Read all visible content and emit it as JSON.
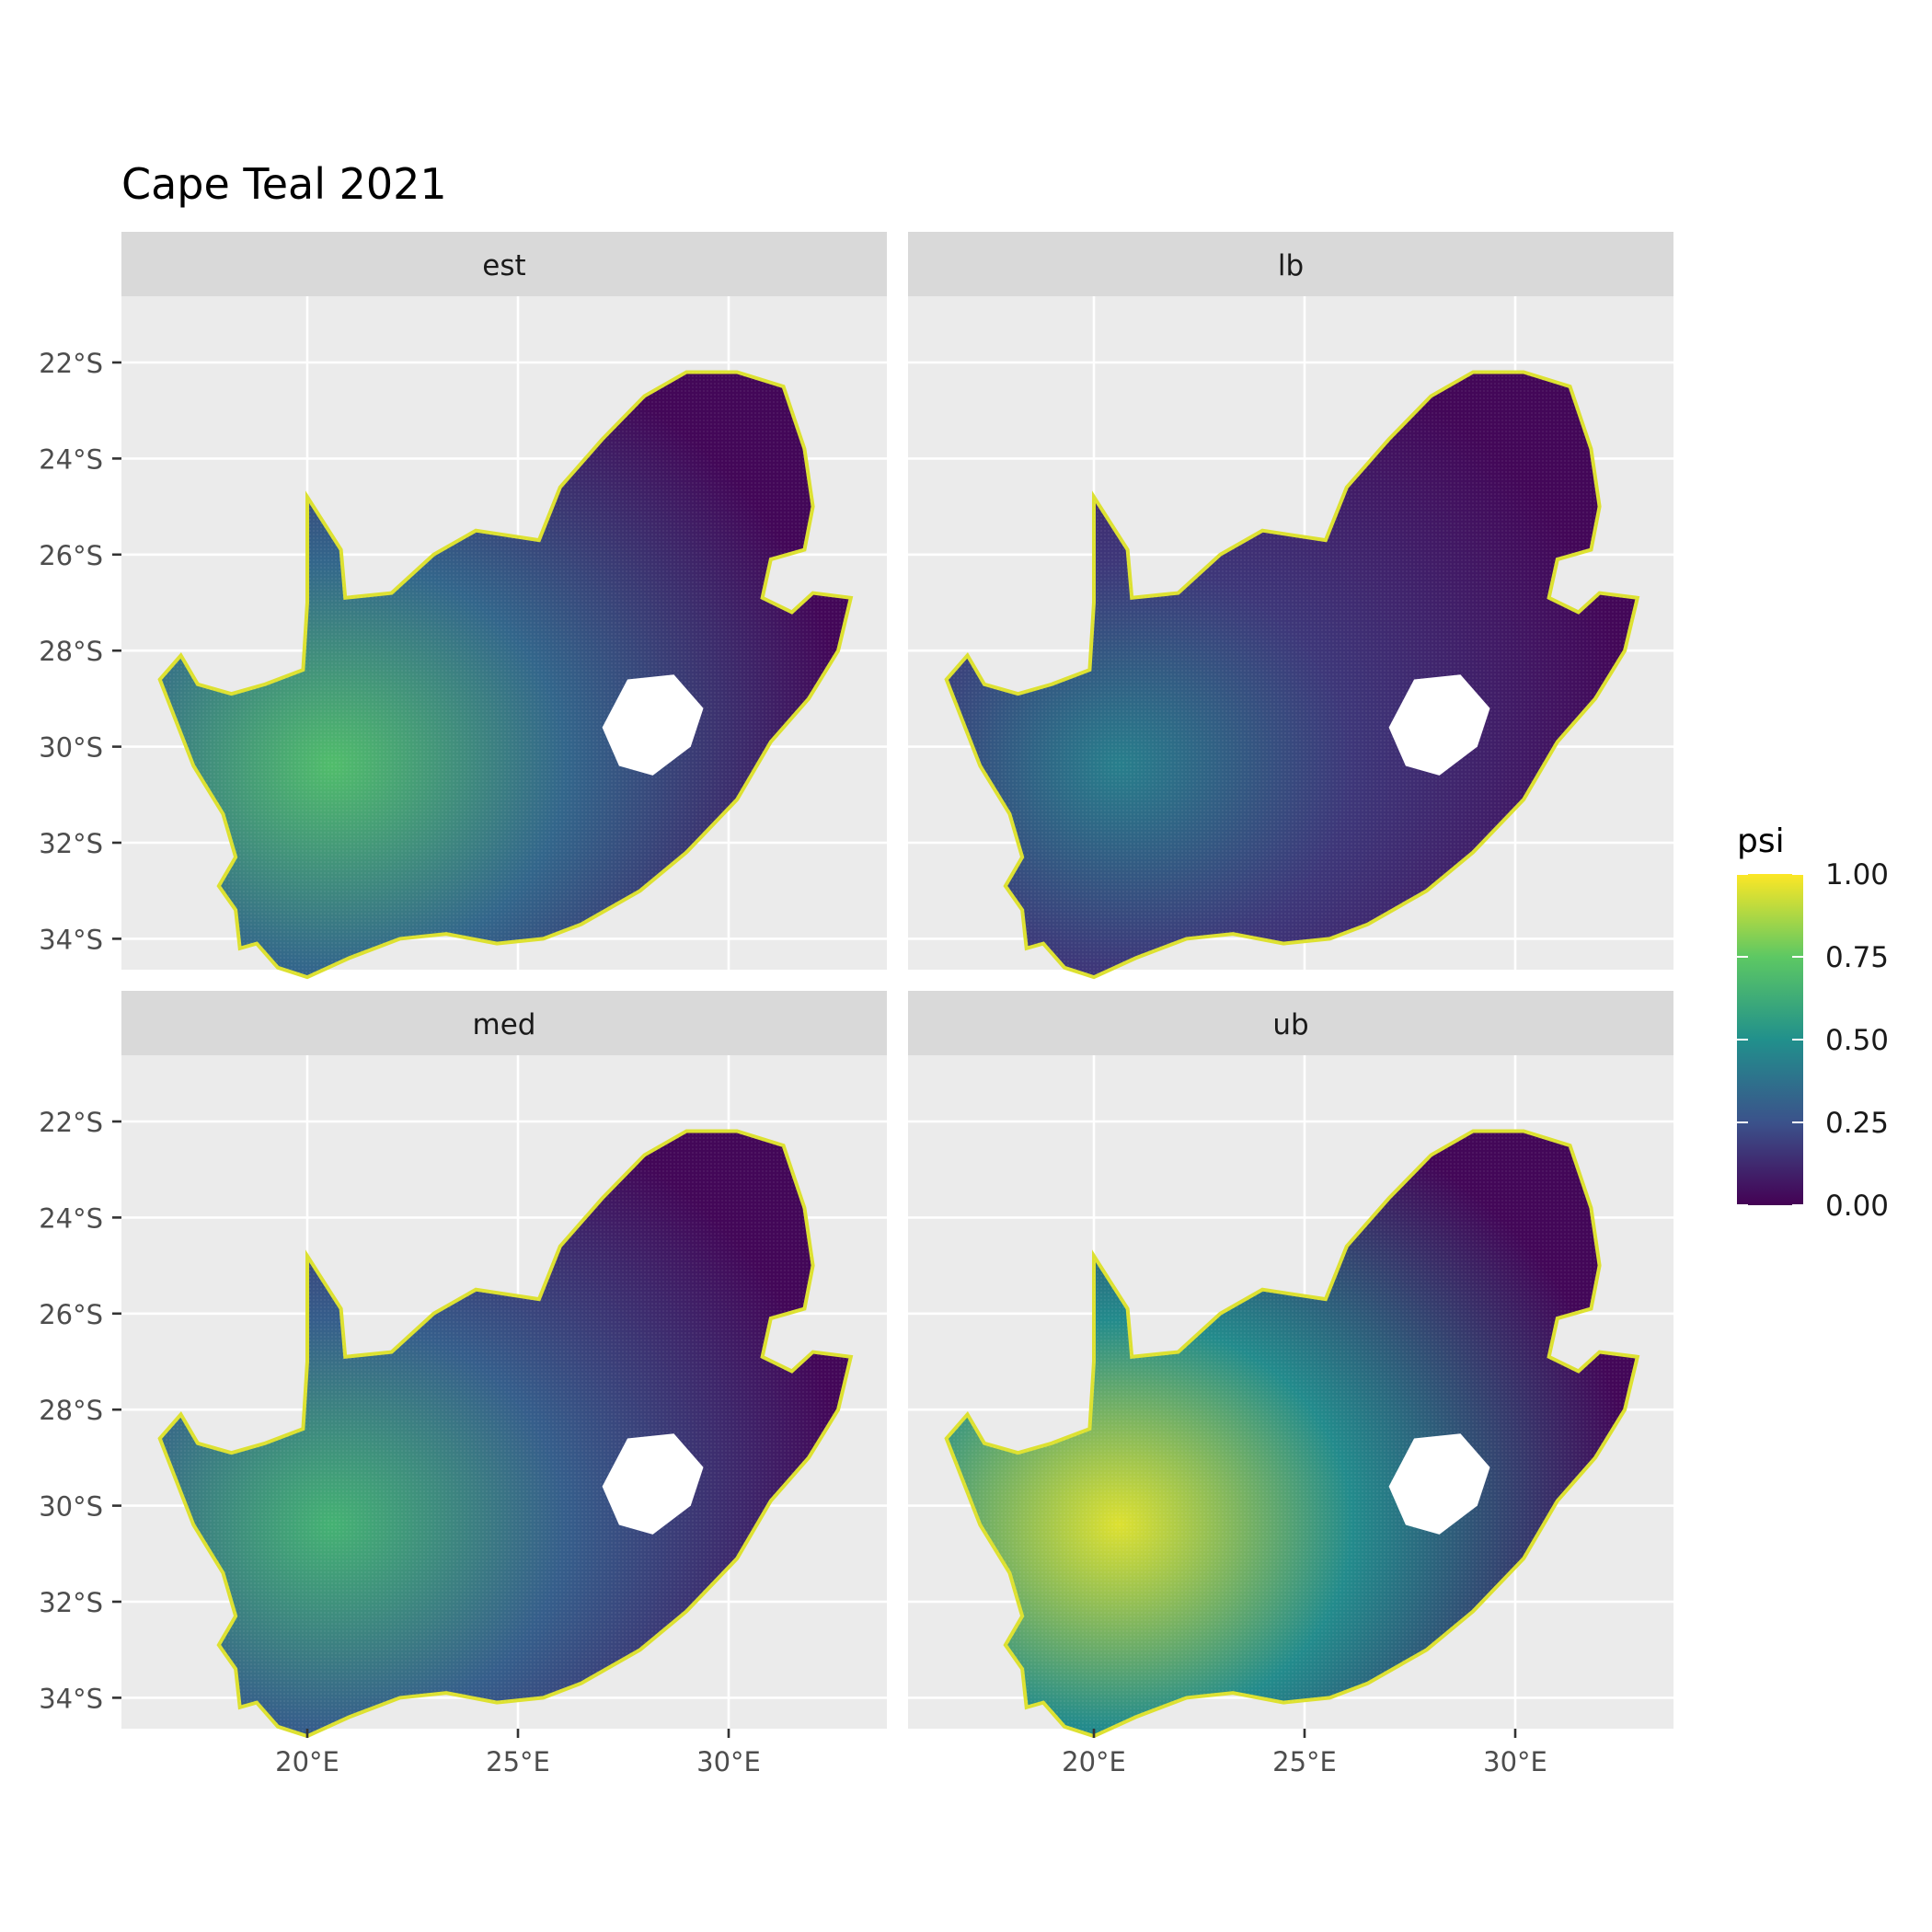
{
  "title": "Cape Teal 2021",
  "panels": [
    {
      "label": "est",
      "level": 0.55
    },
    {
      "label": "lb",
      "level": 0.28
    },
    {
      "label": "med",
      "level": 0.5
    },
    {
      "label": "ub",
      "level": 0.8
    }
  ],
  "axes": {
    "x_ticks": [
      "20°E",
      "25°E",
      "30°E"
    ],
    "y_ticks": [
      "22°S",
      "24°S",
      "26°S",
      "28°S",
      "30°S",
      "32°S",
      "34°S"
    ]
  },
  "legend": {
    "title": "psi",
    "breaks": [
      "1.00",
      "0.75",
      "0.50",
      "0.25",
      "0.00"
    ],
    "palette": [
      "#440154",
      "#3b528b",
      "#21908c",
      "#5dc863",
      "#fde725"
    ]
  },
  "colors": {
    "panel_bg": "#ebebeb",
    "strip_bg": "#d9d9d9",
    "grid": "#ffffff",
    "tick_text": "#4d4d4d"
  }
}
